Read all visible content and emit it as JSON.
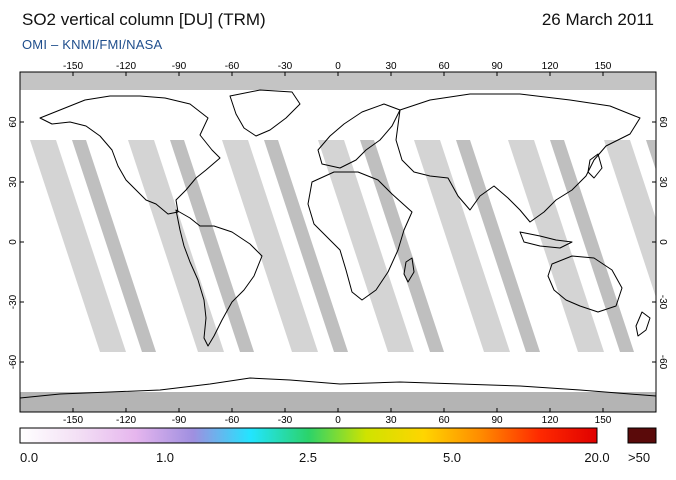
{
  "header": {
    "title": "SO2 vertical column [DU] (TRM)",
    "date": "26 March 2011",
    "credit": "OMI  –  KNMI/FMI/NASA"
  },
  "map": {
    "lon_ticks": [
      "-150",
      "-120",
      "-90",
      "-60",
      "-30",
      "0",
      "30",
      "60",
      "90",
      "120",
      "150"
    ],
    "lat_ticks": [
      "60",
      "30",
      "0",
      "-30",
      "-60"
    ],
    "colors": {
      "background": "#ffffff",
      "swath_light": "#d4d4d4",
      "swath_dark": "#a9a9a9",
      "polar_gray": "#b4b4b4",
      "coast": "#000000"
    }
  },
  "colorbar": {
    "labels": [
      "0.0",
      "1.0",
      "2.5",
      "5.0",
      "20.0"
    ],
    "over_label": ">50",
    "over_color": "#5a0a0a",
    "stops": [
      "#ffffff",
      "#f3e0f5",
      "#e6b6ee",
      "#9f8fe0",
      "#22e5ff",
      "#2bd36a",
      "#cfe300",
      "#ffd500",
      "#ff8a00",
      "#ff2a00",
      "#e00000"
    ]
  }
}
